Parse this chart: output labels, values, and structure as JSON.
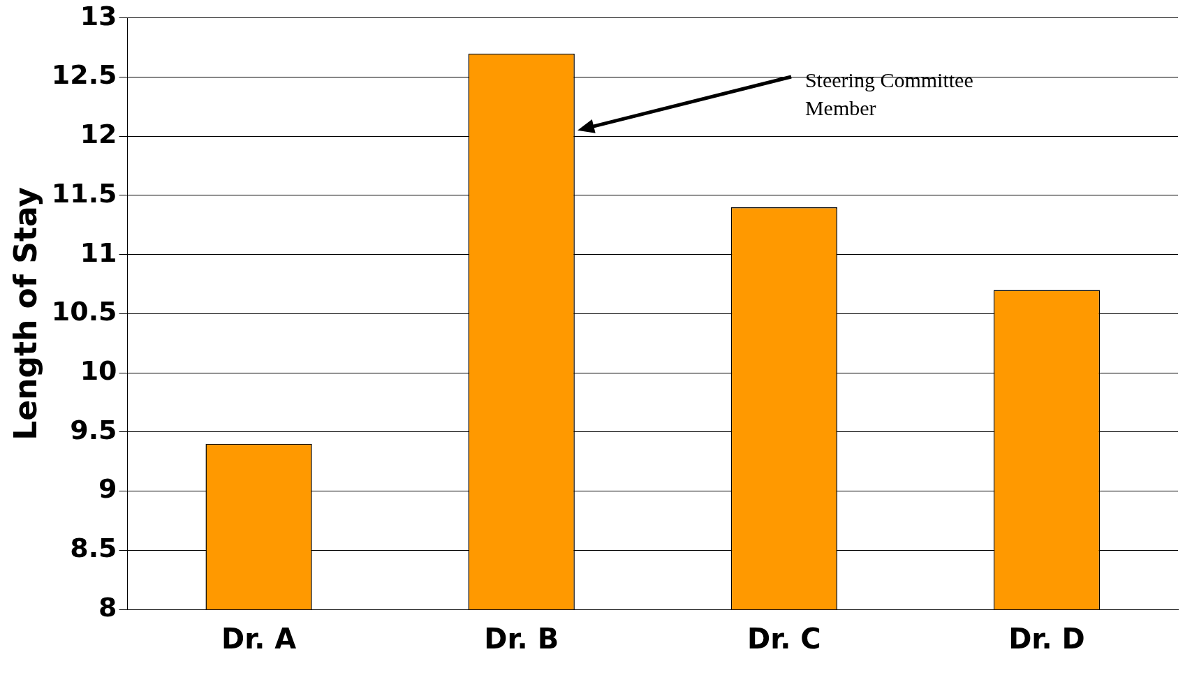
{
  "chart_data": {
    "type": "bar",
    "ylabel": "Length of Stay",
    "categories": [
      "Dr. A",
      "Dr. B",
      "Dr. C",
      "Dr. D"
    ],
    "values": [
      9.4,
      12.7,
      11.4,
      10.7
    ],
    "color": "#ff9900",
    "ylim": [
      8,
      13
    ],
    "yticks": [
      8,
      8.5,
      9,
      9.5,
      10,
      10.5,
      11,
      11.5,
      12,
      12.5,
      13
    ],
    "grid": "y",
    "annotations": [
      "Steering Committee Member"
    ]
  }
}
